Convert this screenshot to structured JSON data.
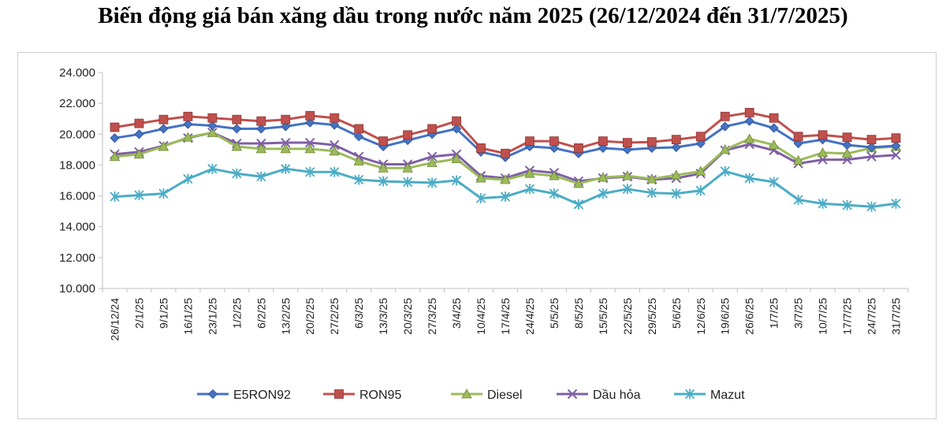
{
  "chart_data": {
    "type": "line",
    "title": "Biến động giá bán xăng dầu trong nước năm 2025 (26/12/2024 đến 31/7/2025)",
    "xlabel": "",
    "ylabel": "",
    "ylim": [
      10000,
      24000
    ],
    "ytick_labels": [
      "10.000",
      "12.000",
      "14.000",
      "16.000",
      "18.000",
      "20.000",
      "22.000",
      "24.000"
    ],
    "grid": false,
    "legend_position": "bottom",
    "categories": [
      "26/12/24",
      "2/1/25",
      "9/1/25",
      "16/1/25",
      "23/1/25",
      "1/2/25",
      "6/2/25",
      "13/2/25",
      "20/2/25",
      "27/2/25",
      "6/3/25",
      "13/3/25",
      "20/3/25",
      "27/3/25",
      "3/4/25",
      "10/4/25",
      "17/4/25",
      "24/4/25",
      "5/5/25",
      "8/5/25",
      "15/5/25",
      "22/5/25",
      "29/5/25",
      "5/6/25",
      "12/6/25",
      "19/6/25",
      "26/6/25",
      "1/7/25",
      "3/7/25",
      "10/7/25",
      "17/7/25",
      "24/7/25",
      "31/7/25"
    ],
    "series": [
      {
        "name": "E5RON92",
        "color": "#4472C4",
        "marker": "diamond",
        "values": [
          19750,
          20000,
          20350,
          20650,
          20550,
          20350,
          20350,
          20500,
          20750,
          20600,
          19850,
          19200,
          19600,
          20000,
          20350,
          18850,
          18500,
          19200,
          19100,
          18750,
          19100,
          19000,
          19100,
          19150,
          19400,
          20500,
          20850,
          20400,
          19400,
          19650,
          19300,
          19150,
          19250
        ]
      },
      {
        "name": "RON95",
        "color": "#C0504D",
        "marker": "square",
        "values": [
          20450,
          20700,
          20950,
          21150,
          21050,
          20950,
          20850,
          20950,
          21200,
          21050,
          20350,
          19550,
          19950,
          20350,
          20850,
          19100,
          18750,
          19550,
          19550,
          19100,
          19550,
          19450,
          19500,
          19650,
          19850,
          21150,
          21400,
          21050,
          19850,
          19950,
          19800,
          19650,
          19750
        ]
      },
      {
        "name": "Diesel",
        "color": "#9BBB59",
        "marker": "triangle",
        "values": [
          18550,
          18700,
          19200,
          19800,
          20100,
          19200,
          19050,
          19050,
          19050,
          18900,
          18250,
          17800,
          17800,
          18150,
          18400,
          17150,
          17050,
          17450,
          17300,
          16800,
          17200,
          17300,
          17100,
          17350,
          17600,
          19000,
          19700,
          19300,
          18300,
          18800,
          18750,
          19100,
          19200
        ]
      },
      {
        "name": "Dầu hỏa",
        "color": "#7F5FA5",
        "marker": "x",
        "values": [
          18700,
          18850,
          19250,
          19750,
          20100,
          19400,
          19400,
          19450,
          19450,
          19300,
          18550,
          18050,
          18050,
          18550,
          18700,
          17300,
          17150,
          17650,
          17500,
          16950,
          17150,
          17250,
          17050,
          17150,
          17450,
          18950,
          19350,
          18950,
          18100,
          18350,
          18350,
          18550,
          18650
        ]
      },
      {
        "name": "Mazut",
        "color": "#4BACC6",
        "marker": "asterisk",
        "values": [
          15950,
          16050,
          16150,
          17100,
          17750,
          17450,
          17250,
          17750,
          17550,
          17550,
          17050,
          16950,
          16900,
          16850,
          17000,
          15850,
          15950,
          16450,
          16150,
          15450,
          16150,
          16450,
          16200,
          16150,
          16350,
          17600,
          17150,
          16900,
          15750,
          15500,
          15400,
          15300,
          15500
        ]
      }
    ]
  }
}
